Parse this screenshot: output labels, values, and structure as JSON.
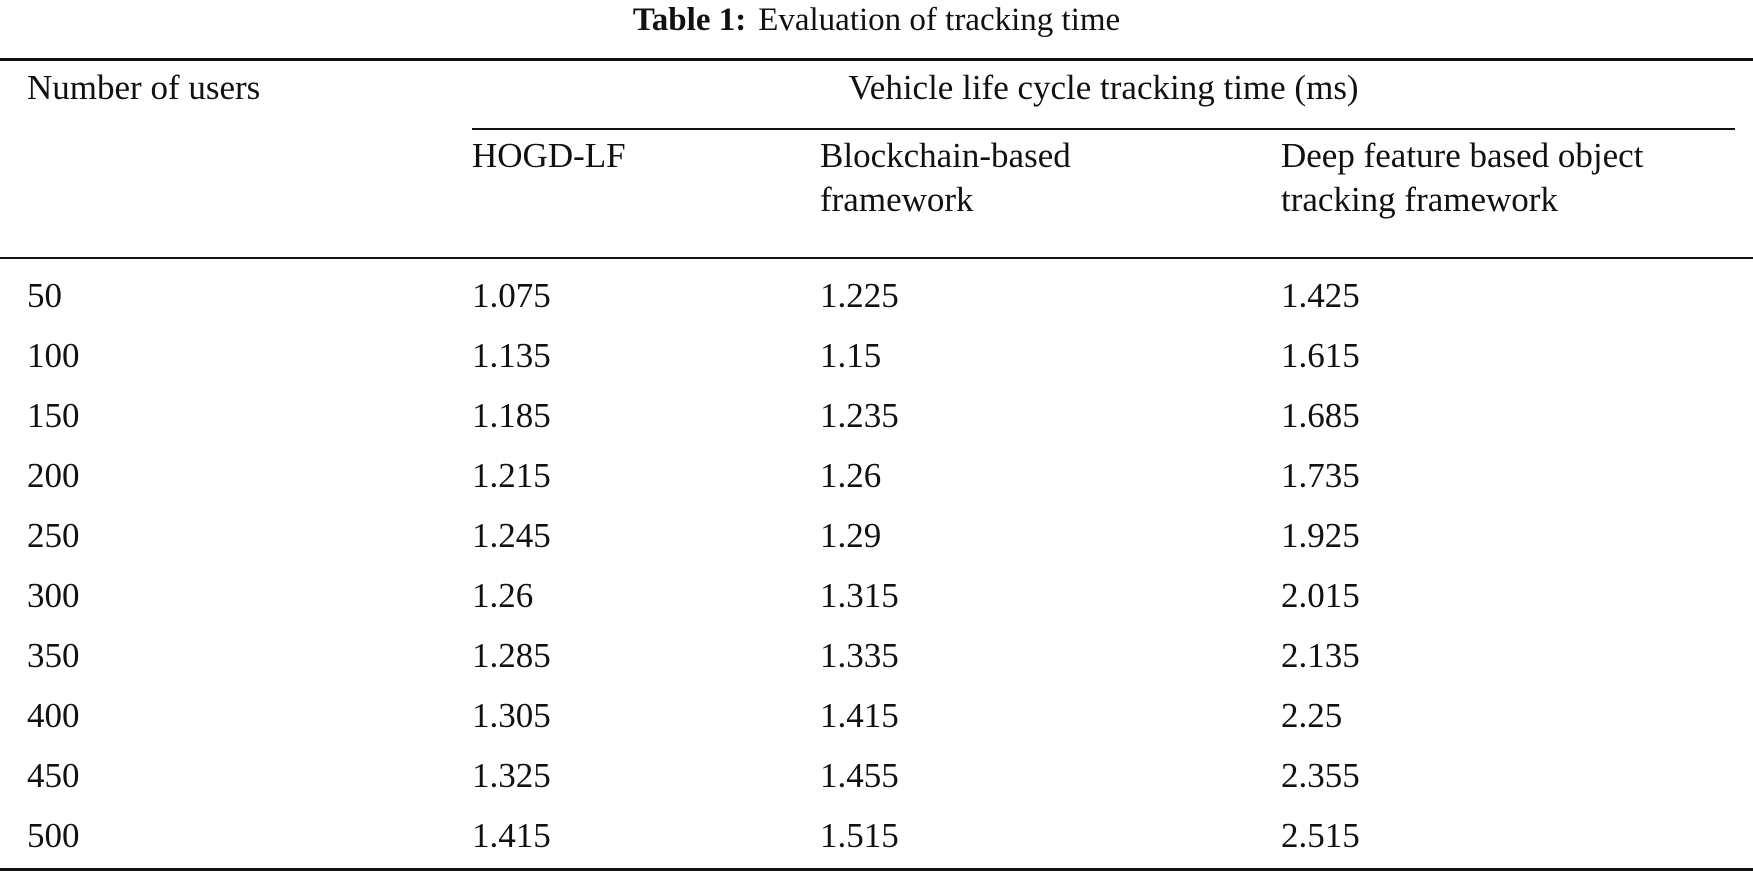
{
  "table": {
    "caption_label": "Table 1:",
    "caption_text": "Evaluation of tracking time",
    "header": {
      "row_header": "Number of users",
      "group_header": "Vehicle life cycle tracking time (ms)",
      "columns": [
        {
          "line1": "HOGD-LF",
          "line2": ""
        },
        {
          "line1": "Blockchain-based",
          "line2": "framework"
        },
        {
          "line1": "Deep feature based object",
          "line2": "tracking framework"
        }
      ]
    },
    "rows": [
      [
        "50",
        "1.075",
        "1.225",
        "1.425"
      ],
      [
        "100",
        "1.135",
        "1.15",
        "1.615"
      ],
      [
        "150",
        "1.185",
        "1.235",
        "1.685"
      ],
      [
        "200",
        "1.215",
        "1.26",
        "1.735"
      ],
      [
        "250",
        "1.245",
        "1.29",
        "1.925"
      ],
      [
        "300",
        "1.26",
        "1.315",
        "2.015"
      ],
      [
        "350",
        "1.285",
        "1.335",
        "2.135"
      ],
      [
        "400",
        "1.305",
        "1.415",
        "2.25"
      ],
      [
        "450",
        "1.325",
        "1.455",
        "2.355"
      ],
      [
        "500",
        "1.415",
        "1.515",
        "2.515"
      ]
    ]
  }
}
